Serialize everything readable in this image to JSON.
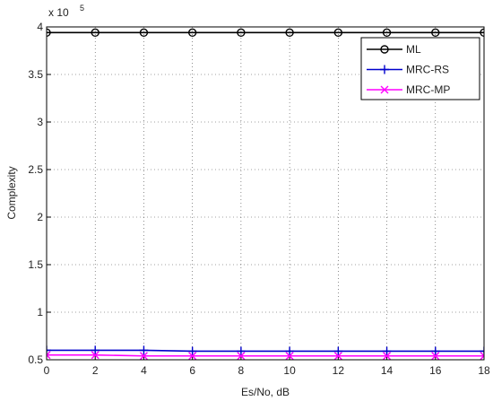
{
  "chart_data": {
    "type": "line",
    "x_label": "Es/No, dB",
    "y_label": "Complexity",
    "y_scale_label": "x 10",
    "y_scale_exponent": "5",
    "x": [
      0,
      2,
      4,
      6,
      8,
      10,
      12,
      14,
      16,
      18
    ],
    "series": [
      {
        "name": "ML",
        "color": "#000000",
        "marker": "circle",
        "values": [
          3.94,
          3.94,
          3.94,
          3.94,
          3.94,
          3.94,
          3.94,
          3.94,
          3.94,
          3.94
        ]
      },
      {
        "name": "MRC-RS",
        "color": "#0000cc",
        "marker": "plus",
        "values": [
          0.6,
          0.6,
          0.6,
          0.59,
          0.59,
          0.59,
          0.59,
          0.59,
          0.59,
          0.59
        ]
      },
      {
        "name": "MRC-MP",
        "color": "#ff00ff",
        "marker": "cross",
        "values": [
          0.55,
          0.55,
          0.54,
          0.54,
          0.54,
          0.54,
          0.54,
          0.54,
          0.54,
          0.54
        ]
      }
    ],
    "xlim": [
      0,
      18
    ],
    "xticks": [
      0,
      2,
      4,
      6,
      8,
      10,
      12,
      14,
      16,
      18
    ],
    "ylim": [
      0.5,
      4
    ],
    "yticks": [
      0.5,
      1,
      1.5,
      2,
      2.5,
      3,
      3.5,
      4
    ],
    "grid": true,
    "legend": "top-right"
  }
}
